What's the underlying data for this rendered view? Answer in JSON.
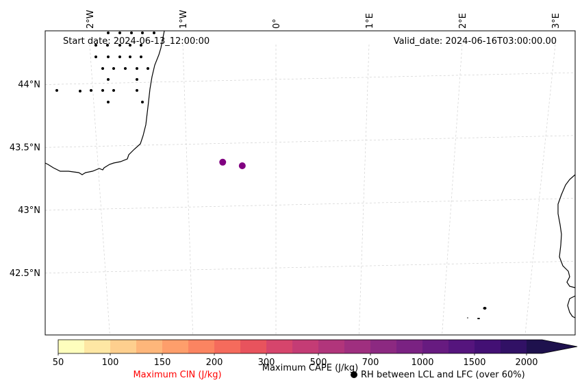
{
  "map": {
    "start_date": "Start date: 2024-06-13_12:00:00",
    "valid_date": "Valid_date: 2024-06-16T03:00:00.00",
    "lon_ticks": [
      {
        "label": "2°W",
        "lon": -2
      },
      {
        "label": "1°W",
        "lon": -1
      },
      {
        "label": "0°",
        "lon": 0
      },
      {
        "label": "1°E",
        "lon": 1
      },
      {
        "label": "2°E",
        "lon": 2
      },
      {
        "label": "3°E",
        "lon": 3
      }
    ],
    "lat_ticks": [
      {
        "label": "44°N",
        "lat": 44.0
      },
      {
        "label": "43.5°N",
        "lat": 43.5
      },
      {
        "label": "43°N",
        "lat": 43.0
      },
      {
        "label": "42.5°N",
        "lat": 42.5
      }
    ],
    "rh_points": [
      {
        "lon": -0.6,
        "lat": 43.38,
        "color": "#800080"
      },
      {
        "lon": -0.38,
        "lat": 43.35,
        "color": "#800080"
      }
    ],
    "coast_color": "#000000",
    "grid": true
  },
  "colorbar": {
    "title": "Maximum CAPE (J/kg)",
    "cin_label": "Maximum CIN (J/kg)",
    "cin_color": "#ff0000",
    "rh_legend": "RH between LCL and LFC (over 60%)",
    "tick_labels": [
      "50",
      "100",
      "150",
      "200",
      "300",
      "500",
      "700",
      "1000",
      "1500",
      "2000"
    ],
    "colors": [
      "#fefebd",
      "#fee7a4",
      "#fecf8e",
      "#feb67a",
      "#fe9e6b",
      "#fb8461",
      "#f56b5c",
      "#e8535d",
      "#d6456c",
      "#c43c75",
      "#b1357b",
      "#9f2f7f",
      "#8c2981",
      "#7a2282",
      "#671b80",
      "#55157d",
      "#431074",
      "#311165",
      "#1e114d"
    ]
  }
}
